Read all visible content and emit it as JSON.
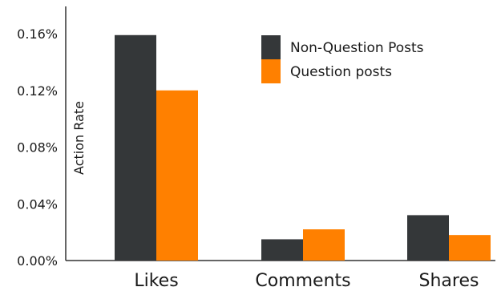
{
  "chart_data": {
    "type": "bar",
    "title": "",
    "xlabel": "",
    "ylabel": "Action Rate",
    "ylim": [
      0,
      0.17
    ],
    "yticks": [
      {
        "value": 0.0,
        "label": "0.00%"
      },
      {
        "value": 0.04,
        "label": "0.04%"
      },
      {
        "value": 0.08,
        "label": "0.08%"
      },
      {
        "value": 0.12,
        "label": "0.12%"
      },
      {
        "value": 0.16,
        "label": "0.16%"
      }
    ],
    "categories": [
      "Likes",
      "Comments",
      "Shares"
    ],
    "series": [
      {
        "name": "Non-Question Posts",
        "color": "#343739",
        "values": [
          0.159,
          0.015,
          0.032
        ]
      },
      {
        "name": "Question posts",
        "color": "#ff8000",
        "values": [
          0.12,
          0.022,
          0.018
        ]
      }
    ],
    "grid": false,
    "legend_position": "top-right"
  }
}
